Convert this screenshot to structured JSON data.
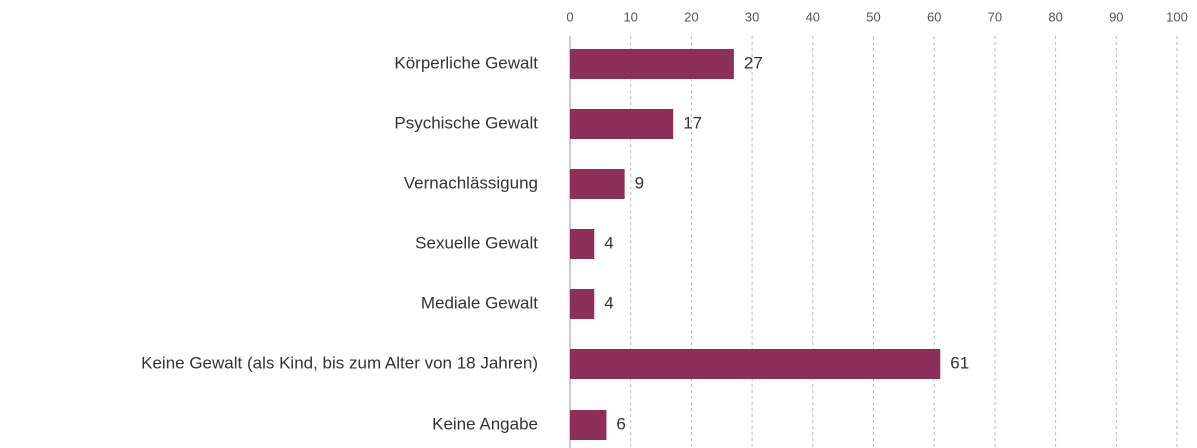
{
  "chart_data": {
    "type": "barh",
    "categories": [
      "Körperliche Gewalt",
      "Psychische Gewalt",
      "Vernachlässigung",
      "Sexuelle Gewalt",
      "Mediale Gewalt",
      "Keine Gewalt (als Kind, bis zum Alter von 18 Jahren)",
      "Keine Angabe"
    ],
    "values": [
      27,
      17,
      9,
      4,
      4,
      61,
      6
    ],
    "color": "#8c2f59",
    "xlim": [
      0,
      100
    ],
    "xticks": [
      0,
      10,
      20,
      30,
      40,
      50,
      60,
      70,
      80,
      90,
      100
    ],
    "grid": true
  }
}
